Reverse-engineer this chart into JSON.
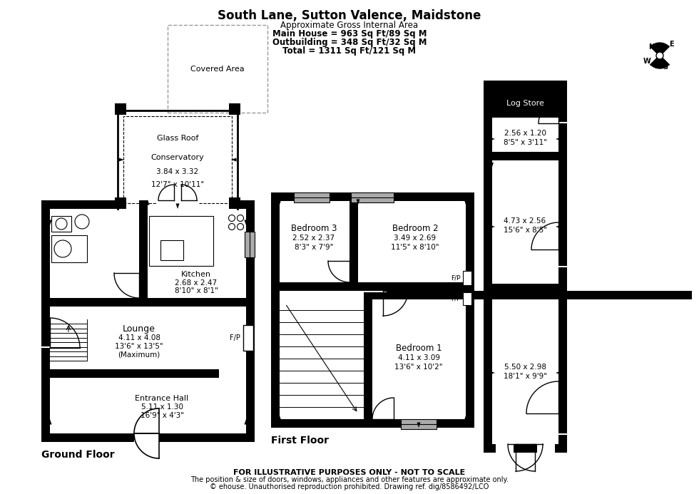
{
  "title": "South Lane, Sutton Valence, Maidstone",
  "subtitle_lines": [
    "Approximate Gross Internal Area",
    "Main House = 963 Sq Ft/89 Sq M",
    "Outbuilding = 348 Sq Ft/32 Sq M",
    "Total = 1311 Sq Ft/121 Sq M"
  ],
  "footer_lines": [
    "FOR ILLUSTRATIVE PURPOSES ONLY - NOT TO SCALE",
    "The position & size of doors, windows, appliances and other features are approximate only.",
    "© ehouse. Unauthorised reproduction prohibited. Drawing ref. dig/8586492/LCO"
  ],
  "ground_floor_label": "Ground Floor",
  "first_floor_label": "First Floor",
  "bg_color": "#ffffff"
}
